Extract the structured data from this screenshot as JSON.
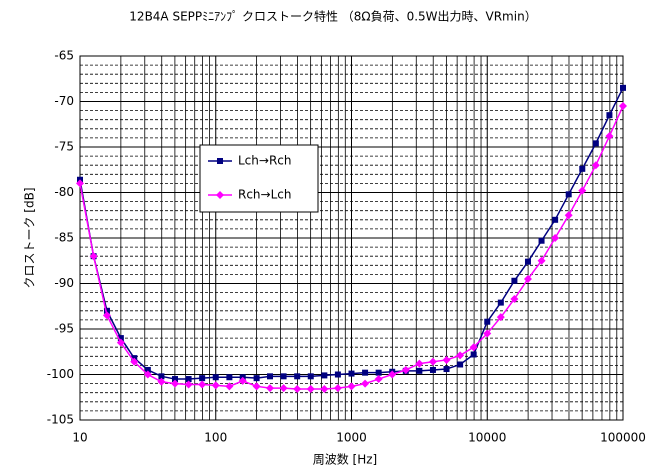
{
  "chart_data": {
    "type": "line",
    "title": "12B4A SEPPﾐﾆｱﾝﾌﾟ クロストーク特性 （8Ω負荷、0.5W出力時、VRmin）",
    "x_label": "周波数 [Hz]",
    "y_label": "クロストーク [dB]",
    "xscale": "log",
    "xlim": [
      10,
      100000
    ],
    "ylim": [
      -105,
      -65
    ],
    "xticks": [
      10,
      100,
      1000,
      10000,
      100000
    ],
    "xminor_ticks": [
      20,
      30,
      40,
      50,
      60,
      70,
      80,
      90,
      200,
      300,
      400,
      500,
      600,
      700,
      800,
      900,
      2000,
      3000,
      4000,
      5000,
      6000,
      7000,
      8000,
      9000,
      20000,
      30000,
      40000,
      50000,
      60000,
      70000,
      80000,
      90000
    ],
    "yticks": [
      -105,
      -100,
      -95,
      -90,
      -85,
      -80,
      -75,
      -70,
      -65
    ],
    "yminor_ticks": [
      -104,
      -103,
      -102,
      -101,
      -99,
      -98,
      -97,
      -96,
      -94,
      -93,
      -92,
      -91,
      -89,
      -88,
      -87,
      -86,
      -84,
      -83,
      -82,
      -81,
      -79,
      -78,
      -77,
      -76,
      -74,
      -73,
      -72,
      -71,
      -69,
      -68,
      -67,
      -66
    ],
    "grid": true,
    "legend": "upper left",
    "x": [
      10,
      12.6,
      15.8,
      20,
      25.1,
      31.6,
      39.8,
      50.1,
      63.1,
      79.4,
      100,
      126,
      158,
      200,
      251,
      316,
      398,
      501,
      631,
      794,
      1000,
      1259,
      1585,
      1995,
      2512,
      3162,
      3981,
      5012,
      6310,
      7943,
      10000,
      12589,
      15849,
      19953,
      25119,
      31623,
      39811,
      50119,
      63096,
      79433,
      100000
    ],
    "series": [
      {
        "name": "Lch→Rch",
        "color": "#000080",
        "marker": "square",
        "values": [
          -78.6,
          -87,
          -93,
          -96,
          -98.2,
          -99.5,
          -100.2,
          -100.5,
          -100.5,
          -100.4,
          -100.3,
          -100.3,
          -100.3,
          -100.4,
          -100.2,
          -100.2,
          -100.2,
          -100.2,
          -100.1,
          -100,
          -99.9,
          -99.8,
          -99.8,
          -99.7,
          -99.6,
          -99.6,
          -99.5,
          -99.4,
          -98.9,
          -97.8,
          -94.2,
          -92.1,
          -89.7,
          -87.6,
          -85.3,
          -83,
          -80.2,
          -77.4,
          -74.6,
          -71.5,
          -68.5
        ]
      },
      {
        "name": "Rch→Lch",
        "color": "#ff00ff",
        "marker": "diamond",
        "values": [
          -79,
          -87,
          -93.5,
          -96.5,
          -98.6,
          -100,
          -100.8,
          -101,
          -101.1,
          -101.1,
          -101.2,
          -101.3,
          -100.7,
          -101.3,
          -101.5,
          -101.5,
          -101.6,
          -101.6,
          -101.6,
          -101.5,
          -101.3,
          -101,
          -100.5,
          -100,
          -99.5,
          -98.8,
          -98.6,
          -98.4,
          -97.9,
          -97,
          -95.5,
          -93.7,
          -91.7,
          -89.5,
          -87.5,
          -85,
          -82.5,
          -79.8,
          -77,
          -73.8,
          -70.5
        ]
      }
    ]
  }
}
